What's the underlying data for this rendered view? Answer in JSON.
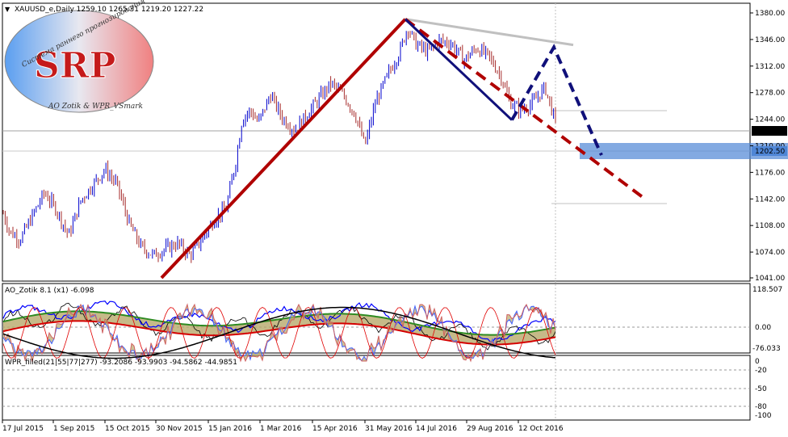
{
  "header": {
    "symbol_info": "XAUUSD_e,Daily  1259.10 1265.31 1219.20 1227.22"
  },
  "logo": {
    "letters": "SRP",
    "top_text": "Система раннего прогнозирования",
    "bottom_text": "AO Zotik & WPR_VSmark"
  },
  "panels": {
    "ao_label": "AO_Zotik 8.1 (x1) -6.098",
    "wpr_label": "WPR_filled(21|55|77|277) -93.2086 -93.9903 -94.5862 -44.9851"
  },
  "colors": {
    "up_bar": "#0000cd",
    "down_bar": "#a52a2a",
    "trend_red": "#b00000",
    "trend_blue": "#10107a",
    "gray_line": "#c0c0c0",
    "zone": "#4f86d6",
    "ao_green": "#2e8b22",
    "ao_fill": "#b8a96a",
    "ao_blue": "#0000ff",
    "ao_red": "#d40000"
  },
  "chart_data": {
    "type": "candlestick",
    "title": "XAUUSD_e,Daily",
    "price_axis": {
      "ticks": [
        "1380.00",
        "1346.00",
        "1312.00",
        "1278.00",
        "1244.00",
        "1210.00",
        "1176.00",
        "1142.00",
        "1108.00",
        "1074.00",
        "1041.00"
      ],
      "ylim": [
        1041,
        1380
      ]
    },
    "current_price": "1227.22",
    "zone_price": "1202.50",
    "x_ticks": [
      "17 Jul 2015",
      "1 Sep 2015",
      "15 Oct 2015",
      "30 Nov 2015",
      "15 Jan 2016",
      "1 Mar 2016",
      "15 Apr 2016",
      "31 May 2016",
      "14 Jul 2016",
      "29 Aug 2016",
      "12 Oct 2016"
    ],
    "ao_axis": {
      "ticks": [
        "118.507",
        "0.00",
        "-76.033"
      ]
    },
    "wpr_axis": {
      "ticks": [
        "-20",
        "-50",
        "-80",
        "-100"
      ],
      "top": "0"
    },
    "price_path": [
      [
        0,
        1135
      ],
      [
        12,
        1100
      ],
      [
        25,
        1090
      ],
      [
        40,
        1120
      ],
      [
        55,
        1150
      ],
      [
        70,
        1128
      ],
      [
        85,
        1095
      ],
      [
        100,
        1140
      ],
      [
        115,
        1160
      ],
      [
        130,
        1180
      ],
      [
        145,
        1160
      ],
      [
        160,
        1110
      ],
      [
        175,
        1080
      ],
      [
        190,
        1070
      ],
      [
        205,
        1078
      ],
      [
        220,
        1085
      ],
      [
        235,
        1070
      ],
      [
        250,
        1090
      ],
      [
        265,
        1115
      ],
      [
        280,
        1130
      ],
      [
        292,
        1190
      ],
      [
        300,
        1245
      ],
      [
        310,
        1255
      ],
      [
        320,
        1240
      ],
      [
        335,
        1275
      ],
      [
        350,
        1245
      ],
      [
        365,
        1230
      ],
      [
        380,
        1250
      ],
      [
        395,
        1270
      ],
      [
        410,
        1290
      ],
      [
        425,
        1275
      ],
      [
        440,
        1250
      ],
      [
        452,
        1210
      ],
      [
        465,
        1265
      ],
      [
        480,
        1300
      ],
      [
        495,
        1330
      ],
      [
        505,
        1362
      ],
      [
        515,
        1340
      ],
      [
        530,
        1330
      ],
      [
        545,
        1345
      ],
      [
        560,
        1340
      ],
      [
        575,
        1320
      ],
      [
        590,
        1335
      ],
      [
        605,
        1325
      ],
      [
        620,
        1300
      ],
      [
        632,
        1265
      ],
      [
        645,
        1255
      ],
      [
        660,
        1265
      ],
      [
        675,
        1285
      ],
      [
        688,
        1240
      ]
    ],
    "annotations": {
      "red_solid": [
        [
          1041,
          200
        ],
        [
          1372,
          502
        ]
      ],
      "red_dashed": [
        [
          1372,
          502
        ],
        [
          1145,
          795
        ]
      ],
      "blue_solid": [
        [
          1372,
          502
        ],
        [
          1243,
          634
        ]
      ],
      "blue_dashed": [
        [
          1243,
          634
        ],
        [
          1336,
          686
        ],
        [
          1198,
          745
        ]
      ],
      "gray_line": [
        [
          1372,
          502
        ],
        [
          1339,
          710
        ]
      ]
    }
  }
}
